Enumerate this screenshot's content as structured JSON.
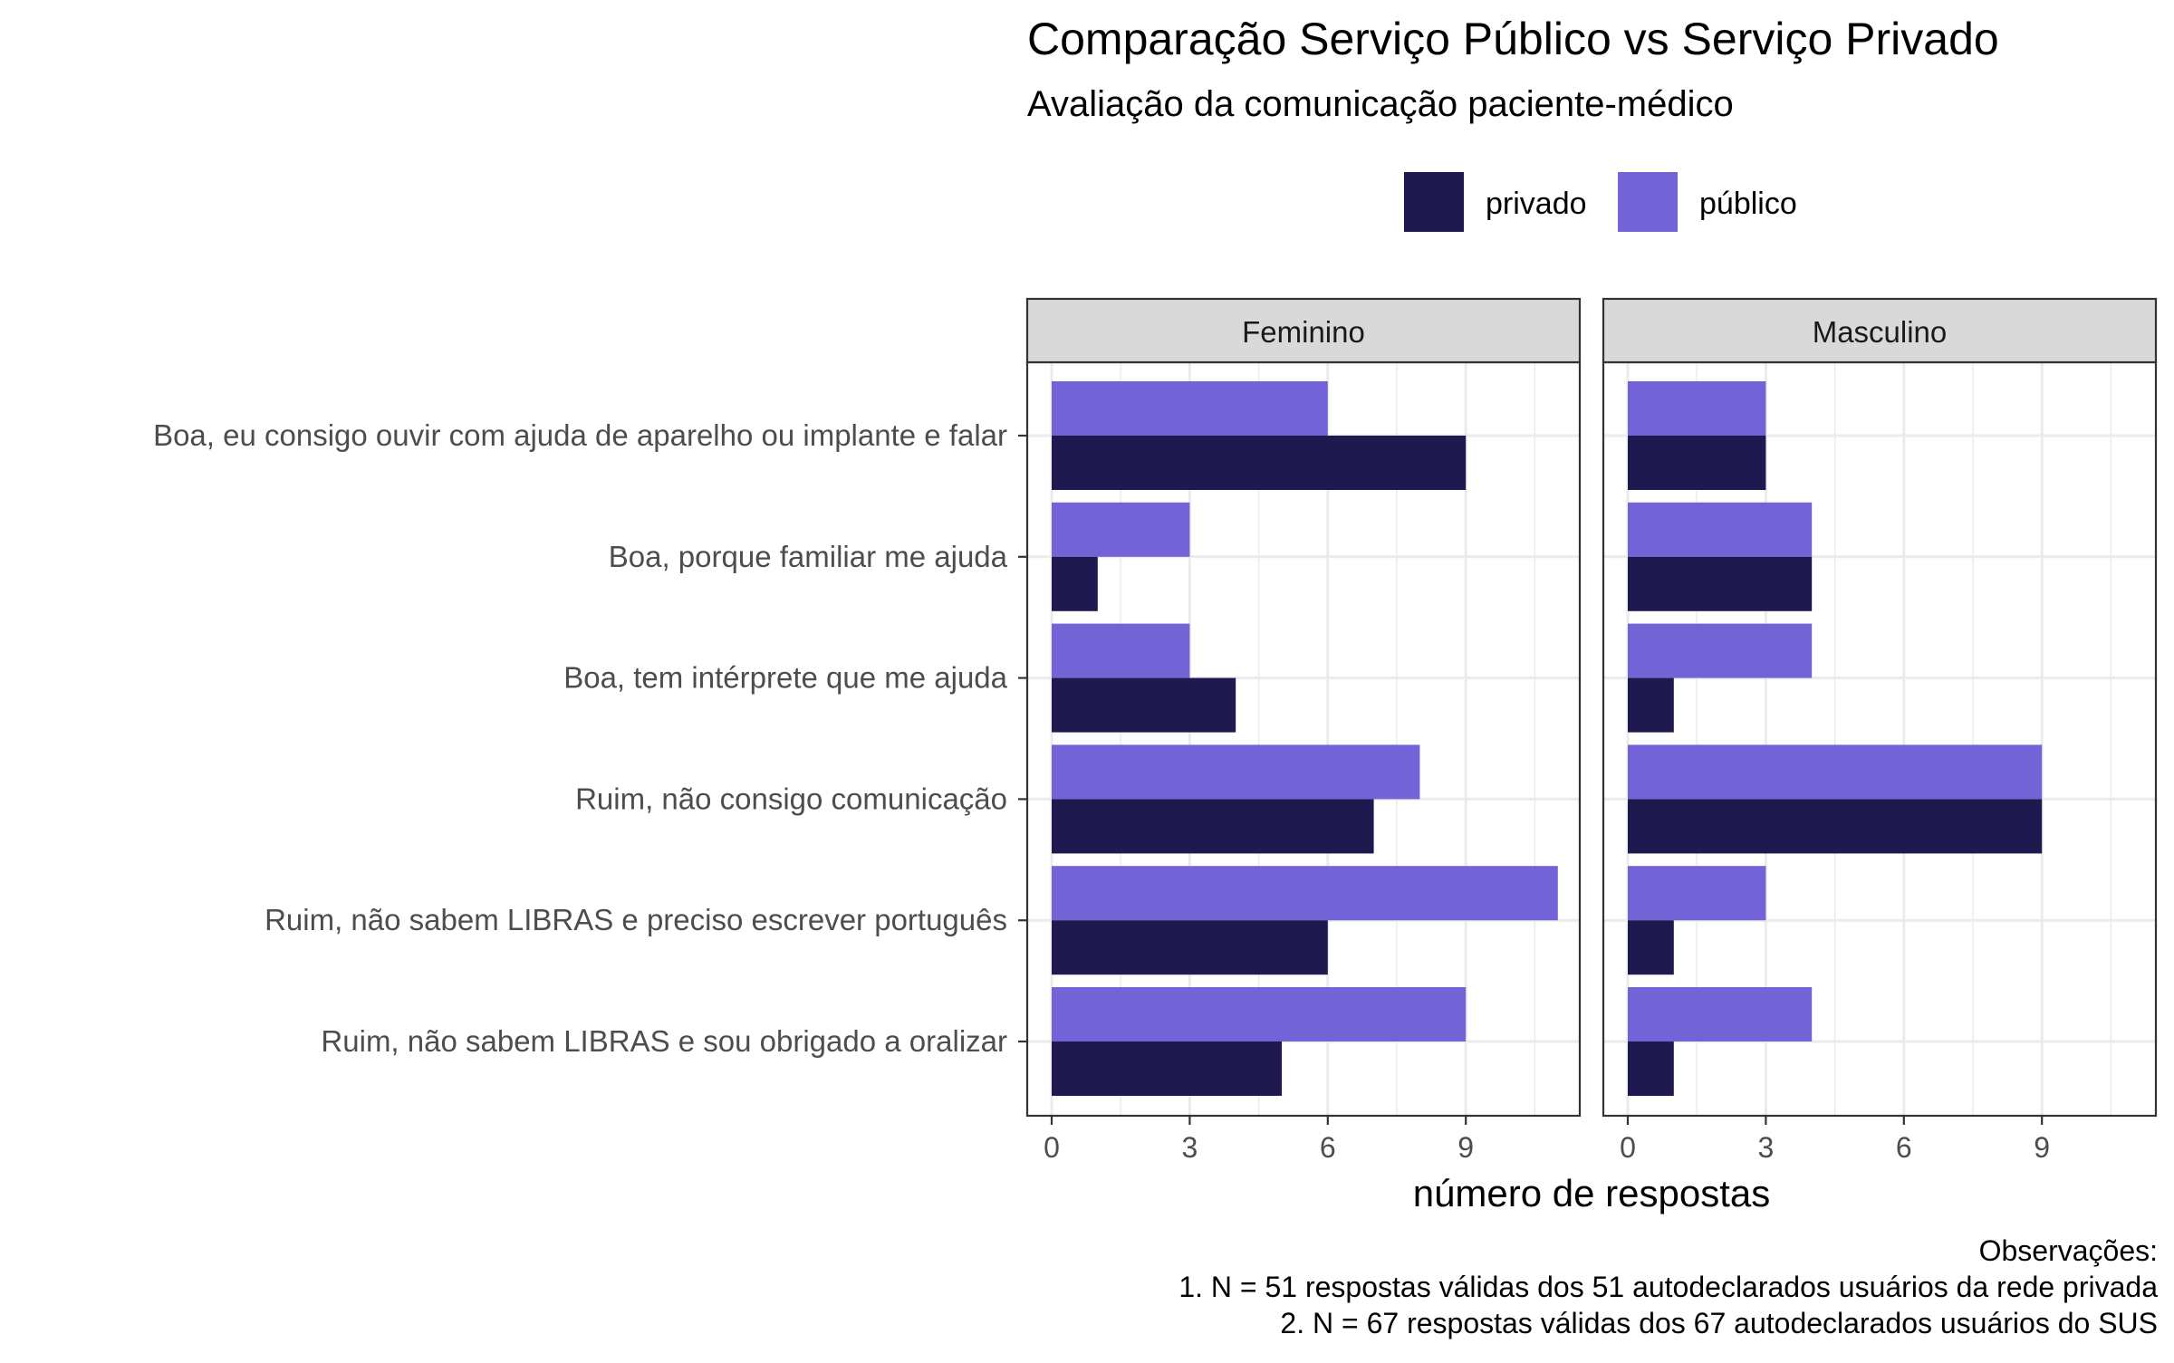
{
  "chart_data": {
    "type": "bar",
    "orientation": "horizontal",
    "title": "Comparação Serviço Público vs Serviço Privado",
    "subtitle": "Avaliação da comunicação paciente-médico",
    "xlabel": "número de respostas",
    "ylabel": "",
    "xlim": [
      0,
      11.5
    ],
    "x_ticks": [
      0,
      3,
      6,
      9
    ],
    "grid": true,
    "legend_position": "top",
    "colors": {
      "privado": "#1E1A4F",
      "público": "#7263D7"
    },
    "categories": [
      "Boa, eu consigo ouvir com ajuda de aparelho ou implante e falar",
      "Boa, porque familiar me ajuda",
      "Boa, tem intérprete que me ajuda",
      "Ruim, não consigo comunicação",
      "Ruim, não sabem LIBRAS e preciso escrever português",
      "Ruim, não sabem LIBRAS e sou obrigado a oralizar"
    ],
    "panels": [
      {
        "label": "Feminino",
        "series": [
          {
            "name": "público",
            "values": [
              6,
              3,
              3,
              8,
              11,
              9
            ]
          },
          {
            "name": "privado",
            "values": [
              9,
              1,
              4,
              7,
              6,
              5
            ]
          }
        ]
      },
      {
        "label": "Masculino",
        "series": [
          {
            "name": "público",
            "values": [
              3,
              4,
              4,
              9,
              3,
              4
            ]
          },
          {
            "name": "privado",
            "values": [
              3,
              4,
              1,
              9,
              1,
              1
            ]
          }
        ]
      }
    ],
    "legend": [
      "privado",
      "público"
    ],
    "caption": [
      "Observações:",
      "1. N = 51 respostas válidas dos 51 autodeclarados usuários da rede privada",
      "2. N = 67 respostas válidas dos 67 autodeclarados usuários do SUS"
    ]
  }
}
